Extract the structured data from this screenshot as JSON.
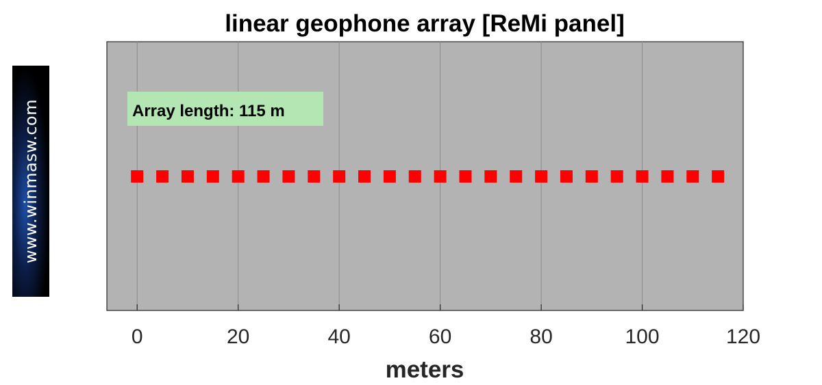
{
  "logo": {
    "text": "www.winmasw.com"
  },
  "chart_data": {
    "type": "scatter",
    "title": "linear geophone array [ReMi panel]",
    "xlabel": "meters",
    "ylabel": "",
    "xlim": [
      -6,
      120
    ],
    "xticks": [
      0,
      20,
      40,
      60,
      80,
      100,
      120
    ],
    "grid": "vertical",
    "marker": "square",
    "series": [
      {
        "x": [
          0,
          5,
          10,
          15,
          20,
          25,
          30,
          35,
          40,
          45,
          50,
          55,
          60,
          65,
          70,
          75,
          80,
          85,
          90,
          95,
          100,
          105,
          110,
          115
        ],
        "y": [
          0,
          0,
          0,
          0,
          0,
          0,
          0,
          0,
          0,
          0,
          0,
          0,
          0,
          0,
          0,
          0,
          0,
          0,
          0,
          0,
          0,
          0,
          0,
          0
        ]
      }
    ],
    "annotation": "Array length: 115 m",
    "colors": {
      "background": "#b3b3b3",
      "marker": "#ff0000",
      "annotation_bg": "#b3e6b3",
      "grid": "#8c8c8c"
    }
  }
}
